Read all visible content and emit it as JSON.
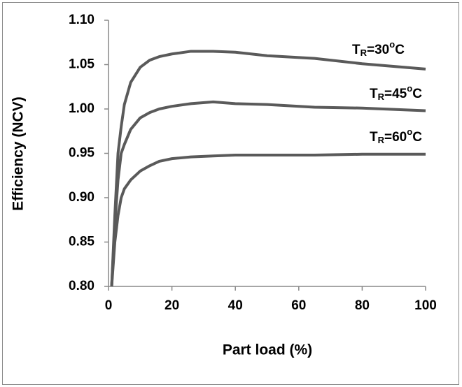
{
  "chart_data": {
    "type": "line",
    "x_label": "Part load (%)",
    "y_label": "Efficiency (NCV)",
    "x": [
      1,
      2,
      3,
      4,
      5,
      7,
      10,
      13,
      16,
      20,
      26,
      33,
      40,
      50,
      65,
      80,
      100
    ],
    "series": [
      {
        "label": {
          "main": "T",
          "sub": "R",
          "rest": "=30",
          "sup": "o",
          "unit": "C"
        },
        "color": "#5a5a5a",
        "values": [
          0.8,
          0.88,
          0.95,
          0.98,
          1.005,
          1.03,
          1.047,
          1.055,
          1.059,
          1.062,
          1.065,
          1.065,
          1.064,
          1.06,
          1.057,
          1.051,
          1.045
        ]
      },
      {
        "label": {
          "main": "T",
          "sub": "R",
          "rest": "=45",
          "sup": "o",
          "unit": "C"
        },
        "color": "#5a5a5a",
        "values": [
          0.8,
          0.87,
          0.92,
          0.95,
          0.96,
          0.977,
          0.99,
          0.996,
          1.0,
          1.003,
          1.006,
          1.008,
          1.006,
          1.005,
          1.002,
          1.001,
          0.998
        ]
      },
      {
        "label": {
          "main": "T",
          "sub": "R",
          "rest": "=60",
          "sup": "o",
          "unit": "C"
        },
        "color": "#5a5a5a",
        "values": [
          0.8,
          0.85,
          0.88,
          0.9,
          0.91,
          0.92,
          0.93,
          0.936,
          0.941,
          0.944,
          0.946,
          0.947,
          0.948,
          0.948,
          0.948,
          0.949,
          0.949
        ]
      }
    ],
    "xlim": [
      0,
      100
    ],
    "xticks": [
      0,
      20,
      40,
      60,
      80,
      100
    ],
    "ylim": [
      0.8,
      1.1
    ],
    "yticks": [
      {
        "value": 0.8,
        "label": "0.80"
      },
      {
        "value": 0.85,
        "label": "0.85"
      },
      {
        "value": 0.9,
        "label": "0.90"
      },
      {
        "value": 0.95,
        "label": "0.95"
      },
      {
        "value": 1.0,
        "label": "1.00"
      },
      {
        "value": 1.05,
        "label": "1.05"
      },
      {
        "value": 1.1,
        "label": "1.10"
      }
    ],
    "grid": false
  }
}
